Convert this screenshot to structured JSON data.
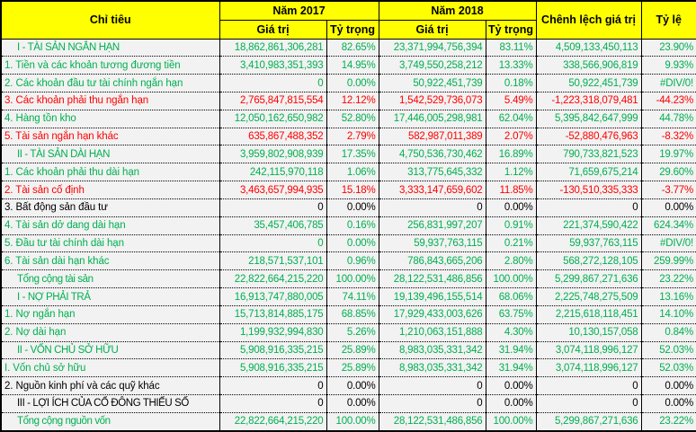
{
  "colors": {
    "header_bg": "#FFFF00",
    "row_bg": "#F2F2F2",
    "border": "#000000",
    "green": "#00B050",
    "red": "#FF0000",
    "black": "#000000"
  },
  "header": {
    "criteria": "Chỉ tiêu",
    "year_2017": "Năm 2017",
    "year_2018": "Năm 2018",
    "value": "Giá trị",
    "weight": "Tỷ trọng",
    "diff": "Chênh lệch giá trị",
    "rate": "Tỷ lệ"
  },
  "rows": [
    {
      "label": "I - TÀI SẢN NGẮN HẠN",
      "section": true,
      "color": "green",
      "v2017": "18,862,861,306,281",
      "p2017": "82.65%",
      "v2018": "23,371,994,756,394",
      "p2018": "83.11%",
      "diff": "4,509,133,450,113",
      "rate": "23.90%"
    },
    {
      "label": "1. Tiền và các khoản tương đương tiền",
      "section": false,
      "color": "green",
      "v2017": "3,410,983,351,393",
      "p2017": "14.95%",
      "v2018": "3,749,550,258,212",
      "p2018": "13.33%",
      "diff": "338,566,906,819",
      "rate": "9.93%"
    },
    {
      "label": "2. Các khoản đầu tư tài chính ngắn hạn",
      "section": false,
      "color": "green",
      "v2017": "0",
      "p2017": "0.00%",
      "v2018": "50,922,451,739",
      "p2018": "0.18%",
      "diff": "50,922,451,739",
      "rate": "#DIV/0!"
    },
    {
      "label": "3. Các khoản phải thu ngắn hạn",
      "section": false,
      "color": "red",
      "v2017": "2,765,847,815,554",
      "p2017": "12.12%",
      "v2018": "1,542,529,736,073",
      "p2018": "5.49%",
      "diff": "-1,223,318,079,481",
      "rate": "-44.23%"
    },
    {
      "label": "4. Hàng tồn kho",
      "section": false,
      "color": "green",
      "v2017": "12,050,162,650,982",
      "p2017": "52.80%",
      "v2018": "17,446,005,298,981",
      "p2018": "62.04%",
      "diff": "5,395,842,647,999",
      "rate": "44.78%"
    },
    {
      "label": "5. Tài sản ngắn hạn khác",
      "section": false,
      "color": "red",
      "v2017": "635,867,488,352",
      "p2017": "2.79%",
      "v2018": "582,987,011,389",
      "p2018": "2.07%",
      "diff": "-52,880,476,963",
      "rate": "-8.32%"
    },
    {
      "label": "II - TÀI SẢN DÀI HẠN",
      "section": true,
      "color": "green",
      "v2017": "3,959,802,908,939",
      "p2017": "17.35%",
      "v2018": "4,750,536,730,462",
      "p2018": "16.89%",
      "diff": "790,733,821,523",
      "rate": "19.97%"
    },
    {
      "label": "1. Các khoản phải thu dài hạn",
      "section": false,
      "color": "green",
      "v2017": "242,115,970,118",
      "p2017": "1.06%",
      "v2018": "313,775,645,332",
      "p2018": "1.12%",
      "diff": "71,659,675,214",
      "rate": "29.60%"
    },
    {
      "label": "2. Tài sản cố định",
      "section": false,
      "color": "red",
      "v2017": "3,463,657,994,935",
      "p2017": "15.18%",
      "v2018": "3,333,147,659,602",
      "p2018": "11.85%",
      "diff": "-130,510,335,333",
      "rate": "-3.77%"
    },
    {
      "label": "3. Bất động sản đầu tư",
      "section": false,
      "color": "black",
      "v2017": "0",
      "p2017": "0.00%",
      "v2018": "0",
      "p2018": "0.00%",
      "diff": "0",
      "rate": "0.00%"
    },
    {
      "label": "4. Tài sản dở dang dài hạn",
      "section": false,
      "color": "green",
      "v2017": "35,457,406,785",
      "p2017": "0.16%",
      "v2018": "256,831,997,207",
      "p2018": "0.91%",
      "diff": "221,374,590,422",
      "rate": "624.34%"
    },
    {
      "label": "5. Đầu tư tài chính dài hạn",
      "section": false,
      "color": "green",
      "v2017": "0",
      "p2017": "0.00%",
      "v2018": "59,937,763,115",
      "p2018": "0.21%",
      "diff": "59,937,763,115",
      "rate": "#DIV/0!"
    },
    {
      "label": "6. Tài sản dài hạn khác",
      "section": false,
      "color": "green",
      "v2017": "218,571,537,101",
      "p2017": "0.96%",
      "v2018": "786,843,665,206",
      "p2018": "2.80%",
      "diff": "568,272,128,105",
      "rate": "259.99%"
    },
    {
      "label": "Tổng cộng tài sản",
      "section": true,
      "color": "green",
      "v2017": "22,822,664,215,220",
      "p2017": "100.00%",
      "v2018": "28,122,531,486,856",
      "p2018": "100.00%",
      "diff": "5,299,867,271,636",
      "rate": "23.22%"
    },
    {
      "label": "I - NỢ PHẢI TRẢ",
      "section": true,
      "color": "green",
      "v2017": "16,913,747,880,005",
      "p2017": "74.11%",
      "v2018": "19,139,496,155,514",
      "p2018": "68.06%",
      "diff": "2,225,748,275,509",
      "rate": "13.16%"
    },
    {
      "label": "1. Nợ ngắn hạn",
      "section": false,
      "color": "green",
      "v2017": "15,713,814,885,175",
      "p2017": "68.85%",
      "v2018": "17,929,433,003,626",
      "p2018": "63.75%",
      "diff": "2,215,618,118,451",
      "rate": "14.10%"
    },
    {
      "label": "2. Nợ dài hạn",
      "section": false,
      "color": "green",
      "v2017": "1,199,932,994,830",
      "p2017": "5.26%",
      "v2018": "1,210,063,151,888",
      "p2018": "4.30%",
      "diff": "10,130,157,058",
      "rate": "0.84%"
    },
    {
      "label": "II - VỐN CHỦ SỞ HỮU",
      "section": true,
      "color": "green",
      "v2017": "5,908,916,335,215",
      "p2017": "25.89%",
      "v2018": "8,983,035,331,342",
      "p2018": "31.94%",
      "diff": "3,074,118,996,127",
      "rate": "52.03%"
    },
    {
      "label": "I. Vốn chủ sở hữu",
      "section": false,
      "color": "green",
      "v2017": "5,908,916,335,215",
      "p2017": "25.89%",
      "v2018": "8,983,035,331,342",
      "p2018": "31.94%",
      "diff": "3,074,118,996,127",
      "rate": "52.03%"
    },
    {
      "label": "2. Nguồn kinh phí và các quỹ khác",
      "section": false,
      "color": "black",
      "v2017": "0",
      "p2017": "0.00%",
      "v2018": "0",
      "p2018": "0.00%",
      "diff": "0",
      "rate": "0.00%"
    },
    {
      "label": "III - LỢI ÍCH CỦA CỔ ĐÔNG THIỂU SỐ",
      "section": true,
      "color": "black",
      "v2017": "0",
      "p2017": "0.00%",
      "v2018": "0",
      "p2018": "0.00%",
      "diff": "0",
      "rate": "0.00%"
    },
    {
      "label": "Tổng cộng nguồn vốn",
      "section": true,
      "color": "green",
      "v2017": "22,822,664,215,220",
      "p2017": "100.00%",
      "v2018": "28,122,531,486,856",
      "p2018": "100.00%",
      "diff": "5,299,867,271,636",
      "rate": "23.22%"
    }
  ]
}
